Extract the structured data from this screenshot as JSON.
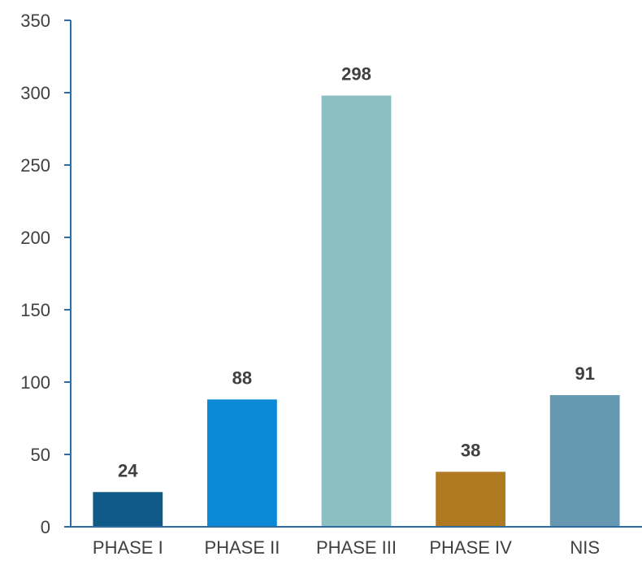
{
  "chart_data": {
    "type": "bar",
    "categories": [
      "PHASE I",
      "PHASE II",
      "PHASE III",
      "PHASE IV",
      "NIS"
    ],
    "values": [
      24,
      88,
      298,
      38,
      91
    ],
    "colors": [
      "#0F5A87",
      "#0A8AD6",
      "#8BBFC2",
      "#B07A22",
      "#6699B1"
    ],
    "axis_color": "#2E6DA4",
    "ylim": [
      0,
      350
    ],
    "yticks": [
      0,
      50,
      100,
      150,
      200,
      250,
      300,
      350
    ],
    "grid": false,
    "legend": "none",
    "data_labels": [
      "24",
      "88",
      "298",
      "38",
      "91"
    ]
  }
}
